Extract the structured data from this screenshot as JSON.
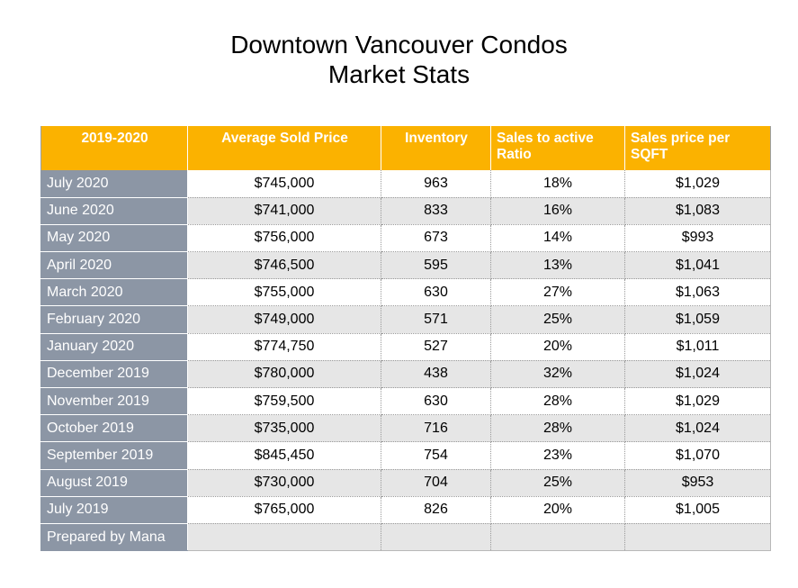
{
  "title": {
    "line1": "Downtown Vancouver Condos",
    "line2": "Market Stats"
  },
  "colors": {
    "header_bg": "#fbb200",
    "label_bg": "#8c96a5",
    "stripe_bg": "#e6e6e6"
  },
  "table": {
    "headers": {
      "period": "2019-2020",
      "avg_price": "Average Sold Price",
      "inventory": "Inventory",
      "ratio": "Sales to active Ratio",
      "sqft": "Sales price per SQFT"
    },
    "rows": [
      {
        "period": "July 2020",
        "avg_price": "$745,000",
        "inventory": "963",
        "ratio": "18%",
        "sqft": "$1,029"
      },
      {
        "period": "June 2020",
        "avg_price": "$741,000",
        "inventory": "833",
        "ratio": "16%",
        "sqft": "$1,083"
      },
      {
        "period": "May 2020",
        "avg_price": "$756,000",
        "inventory": "673",
        "ratio": "14%",
        "sqft": "$993"
      },
      {
        "period": "April 2020",
        "avg_price": "$746,500",
        "inventory": "595",
        "ratio": "13%",
        "sqft": "$1,041"
      },
      {
        "period": "March 2020",
        "avg_price": "$755,000",
        "inventory": "630",
        "ratio": "27%",
        "sqft": "$1,063"
      },
      {
        "period": "February 2020",
        "avg_price": "$749,000",
        "inventory": "571",
        "ratio": "25%",
        "sqft": "$1,059"
      },
      {
        "period": "January 2020",
        "avg_price": "$774,750",
        "inventory": "527",
        "ratio": "20%",
        "sqft": "$1,011"
      },
      {
        "period": "December 2019",
        "avg_price": "$780,000",
        "inventory": "438",
        "ratio": "32%",
        "sqft": "$1,024"
      },
      {
        "period": "November 2019",
        "avg_price": "$759,500",
        "inventory": "630",
        "ratio": "28%",
        "sqft": "$1,029"
      },
      {
        "period": "October 2019",
        "avg_price": "$735,000",
        "inventory": "716",
        "ratio": "28%",
        "sqft": "$1,024"
      },
      {
        "period": "September 2019",
        "avg_price": "$845,450",
        "inventory": "754",
        "ratio": "23%",
        "sqft": "$1,070"
      },
      {
        "period": "August 2019",
        "avg_price": "$730,000",
        "inventory": "704",
        "ratio": "25%",
        "sqft": "$953"
      },
      {
        "period": "July 2019",
        "avg_price": "$765,000",
        "inventory": "826",
        "ratio": "20%",
        "sqft": "$1,005"
      },
      {
        "period": "Prepared by Mana",
        "avg_price": "",
        "inventory": "",
        "ratio": "",
        "sqft": ""
      }
    ]
  }
}
